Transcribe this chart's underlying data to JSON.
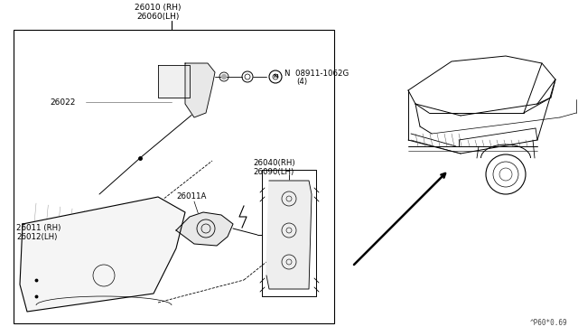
{
  "bg_color": "#ffffff",
  "lc": "#000000",
  "footer": "^P60*0.69",
  "label_26010": "26010 (RH)",
  "label_26060": "26060(LH)",
  "label_26022": "26022",
  "label_N": "N  08911-1062G",
  "label_4": "(4)",
  "label_26011A": "26011A",
  "label_26011": "26011 (RH)",
  "label_26012": "26012(LH)",
  "label_26040": "26040(RH)",
  "label_26090": "26090(LH)"
}
